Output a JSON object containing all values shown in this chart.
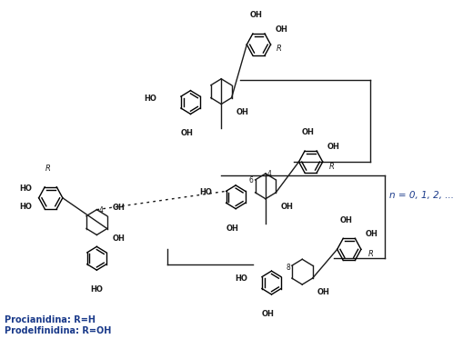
{
  "background_color": "#ffffff",
  "label1": "Procianidina: R=H",
  "label2": "Prodelfinidina: R=OH",
  "label_n": "n = 0, 1, 2, ...",
  "label_color": "#1a3a8a",
  "fig_width": 5.09,
  "fig_height": 3.73,
  "dpi": 100
}
